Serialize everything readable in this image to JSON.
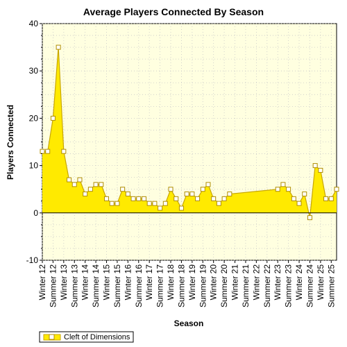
{
  "chart_data": {
    "type": "area",
    "title": "Average Players Connected By Season",
    "xlabel": "Season",
    "ylabel": "Players Connected",
    "ylim": [
      -10,
      40
    ],
    "yticks": [
      -10,
      0,
      10,
      20,
      30,
      40
    ],
    "grid": true,
    "legend": "bottom-left",
    "x_tick_labels": [
      "Winter 12",
      "Summer 12",
      "Winter 13",
      "Summer 13",
      "Winter 14",
      "Summer 14",
      "Winter 15",
      "Summer 15",
      "Winter 16",
      "Summer 16",
      "Winter 17",
      "Summer 17",
      "Winter 18",
      "Summer 18",
      "Winter 19",
      "Summer 19",
      "Winter 20",
      "Summer 20",
      "Winter 21",
      "Summer 21",
      "Winter 22",
      "Summer 22",
      "Winter 23",
      "Summer 23",
      "Winter 24",
      "Summer 24",
      "Winter 25",
      "Summer 25"
    ],
    "series": [
      {
        "name": "Cleft of Dimensions",
        "points": [
          [
            0,
            13
          ],
          [
            0.5,
            13
          ],
          [
            1,
            20
          ],
          [
            1.5,
            35
          ],
          [
            2,
            13
          ],
          [
            2.5,
            7
          ],
          [
            3,
            6
          ],
          [
            3.5,
            7
          ],
          [
            4,
            4
          ],
          [
            4.5,
            5
          ],
          [
            5,
            6
          ],
          [
            5.5,
            6
          ],
          [
            6,
            3
          ],
          [
            6.5,
            2
          ],
          [
            7,
            2
          ],
          [
            7.5,
            5
          ],
          [
            8,
            4
          ],
          [
            8.5,
            3
          ],
          [
            9,
            3
          ],
          [
            9.5,
            3
          ],
          [
            10,
            2
          ],
          [
            10.5,
            2
          ],
          [
            11,
            1
          ],
          [
            11.5,
            2
          ],
          [
            12,
            5
          ],
          [
            12.5,
            3
          ],
          [
            13,
            1
          ],
          [
            13.5,
            4
          ],
          [
            14,
            4
          ],
          [
            14.5,
            3
          ],
          [
            15,
            5
          ],
          [
            15.5,
            6
          ],
          [
            16,
            3
          ],
          [
            16.5,
            2
          ],
          [
            17,
            3
          ],
          [
            17.5,
            4
          ],
          [
            22,
            5
          ],
          [
            22.5,
            6
          ],
          [
            23,
            5
          ],
          [
            23.5,
            3
          ],
          [
            24,
            2
          ],
          [
            24.5,
            4
          ],
          [
            25,
            -1
          ],
          [
            25.5,
            10
          ],
          [
            26,
            9
          ],
          [
            26.5,
            3
          ],
          [
            27,
            3
          ],
          [
            27.5,
            5
          ]
        ]
      }
    ]
  },
  "colors": {
    "plot_background": "#ffffe0",
    "area_fill": "#ffea00",
    "area_line": "#c8a600",
    "marker_fill": "#ffffff",
    "marker_stroke": "#b08d00",
    "grid": "#c8c8c8",
    "zero_line": "#000000"
  }
}
